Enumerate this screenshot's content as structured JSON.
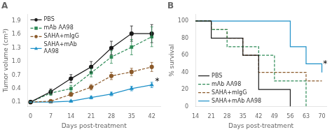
{
  "chart_data": [
    {
      "type": "line",
      "title": "A",
      "xlabel": "Days post-treatment",
      "ylabel": "Tumor volume (cm³)",
      "x": [
        0,
        7,
        14,
        21,
        28,
        35,
        42
      ],
      "xlim": [
        -1,
        45
      ],
      "xticks": [
        0,
        7,
        14,
        21,
        28,
        35,
        42
      ],
      "ylim": [
        0,
        2.05
      ],
      "yticks": [
        0.1,
        0.4,
        0.7,
        {
          "value": 1.0,
          "label": "1.0"
        },
        1.3,
        1.6,
        1.9
      ],
      "grid": false,
      "legend": "upper left",
      "annotations": [
        {
          "text": "*",
          "x": 43.2,
          "y": 0.5
        }
      ],
      "series": [
        {
          "name": "PBS",
          "color": "#1a1a1a",
          "marker": "circle",
          "line_style": "solid",
          "values": [
            0.1,
            0.33,
            0.62,
            0.88,
            1.3,
            1.62,
            1.62
          ],
          "yerr": [
            0.01,
            0.06,
            0.09,
            0.12,
            0.15,
            0.17,
            0.2
          ]
        },
        {
          "name": "mAb AA98",
          "color": "#2e8b57",
          "marker": "square",
          "line_style": "dashed",
          "values": [
            0.1,
            0.3,
            0.4,
            0.75,
            1.1,
            1.32,
            1.55
          ],
          "yerr": [
            0.01,
            0.05,
            0.07,
            0.09,
            0.14,
            0.17,
            0.22
          ]
        },
        {
          "name": "SAHA+mIgG",
          "color": "#8b5a2b",
          "marker": "circle",
          "line_style": "dashed",
          "values": [
            0.1,
            0.12,
            0.27,
            0.43,
            0.68,
            0.77,
            0.88
          ],
          "yerr": [
            0.01,
            0.02,
            0.04,
            0.06,
            0.08,
            0.08,
            0.1
          ]
        },
        {
          "name": "SAHA+mAb\nAA98",
          "color": "#1e90c8",
          "marker": "triangle",
          "line_style": "solid",
          "values": [
            0.1,
            0.1,
            0.12,
            0.2,
            0.28,
            0.4,
            0.48
          ],
          "yerr": [
            0.005,
            0.01,
            0.02,
            0.03,
            0.04,
            0.05,
            0.06
          ]
        }
      ]
    },
    {
      "type": "step",
      "title": "B",
      "xlabel": "Days post-treatment",
      "ylabel": "% survival",
      "xlim": [
        14,
        72
      ],
      "xticks": [
        14,
        21,
        28,
        35,
        42,
        49,
        56,
        63,
        70
      ],
      "ylim": [
        0,
        108
      ],
      "yticks": [
        0,
        20,
        40,
        60,
        80,
        100
      ],
      "grid": false,
      "legend": "lower left",
      "annotations": [
        {
          "text": "*",
          "x": 70.5,
          "y": 47
        }
      ],
      "series": [
        {
          "name": "PBS",
          "color": "#1a1a1a",
          "line_style": "solid",
          "x": [
            14,
            21,
            28,
            35,
            42,
            49,
            56
          ],
          "values": [
            100,
            80,
            80,
            60,
            20,
            20,
            0
          ]
        },
        {
          "name": "mAb AA98",
          "color": "#2e8b57",
          "line_style": "dashed",
          "x": [
            14,
            21,
            28,
            35,
            42,
            49,
            56,
            63
          ],
          "values": [
            100,
            90,
            70,
            70,
            60,
            30,
            30,
            0
          ]
        },
        {
          "name": "SAHA+mIgG",
          "color": "#8b5a2b",
          "line_style": "dashed",
          "x": [
            14,
            21,
            28,
            35,
            42,
            49,
            56,
            63,
            70
          ],
          "values": [
            100,
            90,
            80,
            60,
            40,
            40,
            40,
            30,
            30
          ]
        },
        {
          "name": "SAHA+mAb AA98",
          "color": "#1e90c8",
          "line_style": "solid",
          "x": [
            14,
            21,
            28,
            35,
            42,
            49,
            56,
            63,
            70
          ],
          "values": [
            100,
            100,
            100,
            100,
            100,
            100,
            70,
            50,
            40
          ]
        }
      ]
    }
  ]
}
